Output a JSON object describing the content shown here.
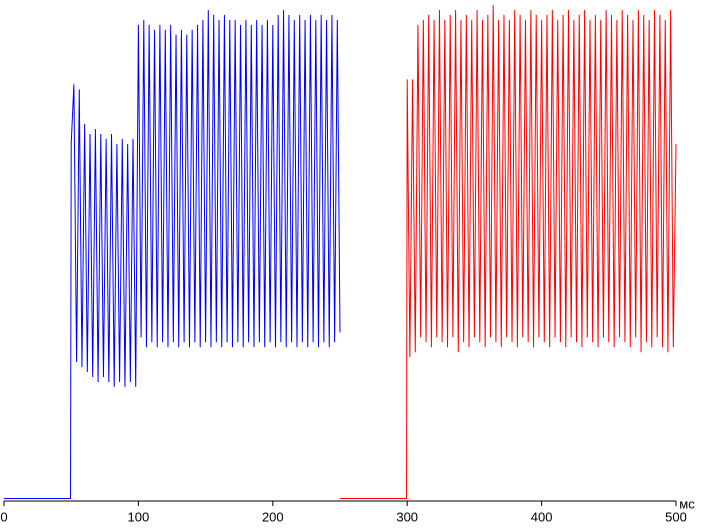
{
  "chart_data": {
    "type": "line",
    "x_label": "мс",
    "xlim": [
      0,
      500
    ],
    "xticks": [
      0,
      100,
      200,
      300,
      400,
      500
    ],
    "ylim": [
      0,
      100
    ],
    "series": [
      {
        "color": "#0000ff",
        "x": [
          0,
          49.5,
          50,
          52,
          54,
          56,
          58,
          60,
          62,
          64,
          66,
          68,
          70,
          72,
          74,
          76,
          78,
          80,
          82,
          84,
          86,
          88,
          90,
          92,
          94,
          96,
          98,
          100,
          102,
          104,
          106,
          108,
          110,
          112,
          114,
          116,
          118,
          120,
          122,
          124,
          126,
          128,
          130,
          132,
          134,
          136,
          138,
          140,
          142,
          144,
          146,
          148,
          150,
          152,
          154,
          156,
          158,
          160,
          162,
          164,
          166,
          168,
          170,
          172,
          174,
          176,
          178,
          180,
          182,
          184,
          186,
          188,
          190,
          192,
          194,
          196,
          198,
          200,
          202,
          204,
          206,
          208,
          210,
          212,
          214,
          216,
          218,
          220,
          222,
          224,
          226,
          228,
          230,
          232,
          234,
          236,
          238,
          240,
          242,
          244,
          246,
          248,
          250
        ],
        "values": [
          0.5,
          0.5,
          72,
          84,
          28,
          83,
          27,
          76,
          26,
          74,
          25,
          75,
          24,
          74,
          25,
          73,
          24,
          74,
          23,
          72,
          24,
          73,
          23,
          72,
          24,
          73,
          23,
          96,
          33,
          97,
          31,
          96,
          32,
          95,
          31,
          96,
          32,
          95,
          31,
          96,
          32,
          94,
          31,
          95,
          32,
          94,
          31,
          95,
          32,
          96,
          31,
          97,
          32,
          99,
          31,
          98,
          32,
          97,
          31,
          98,
          32,
          97,
          31,
          97,
          32,
          96,
          31,
          97,
          32,
          96,
          31,
          97,
          32,
          96,
          31,
          97,
          32,
          96,
          31,
          98,
          32,
          99,
          31,
          98,
          32,
          97,
          31,
          98,
          32,
          97,
          31,
          98,
          32,
          97,
          31,
          98,
          32,
          97,
          31,
          98,
          32,
          97,
          34
        ]
      },
      {
        "color": "#ff0000",
        "x": [
          250,
          299.5,
          300,
          302,
          304,
          306,
          308,
          310,
          312,
          314,
          316,
          318,
          320,
          322,
          324,
          326,
          328,
          330,
          332,
          334,
          336,
          338,
          340,
          342,
          344,
          346,
          348,
          350,
          352,
          354,
          356,
          358,
          360,
          362,
          364,
          366,
          368,
          370,
          372,
          374,
          376,
          378,
          380,
          382,
          384,
          386,
          388,
          390,
          392,
          394,
          396,
          398,
          400,
          402,
          404,
          406,
          408,
          410,
          412,
          414,
          416,
          418,
          420,
          422,
          424,
          426,
          428,
          430,
          432,
          434,
          436,
          438,
          440,
          442,
          444,
          446,
          448,
          450,
          452,
          454,
          456,
          458,
          460,
          462,
          464,
          466,
          468,
          470,
          472,
          474,
          476,
          478,
          480,
          482,
          484,
          486,
          488,
          490,
          492,
          494,
          496,
          498,
          500
        ],
        "values": [
          0.5,
          0.5,
          85,
          29,
          85,
          30,
          96,
          33,
          97,
          32,
          98,
          31,
          97,
          33,
          99,
          32,
          97,
          31,
          98,
          33,
          99,
          30,
          97,
          32,
          98,
          31,
          97,
          33,
          99,
          32,
          97,
          31,
          98,
          33,
          100,
          32,
          97,
          31,
          98,
          33,
          97,
          32,
          99,
          31,
          98,
          33,
          97,
          32,
          99,
          31,
          98,
          33,
          97,
          32,
          98,
          31,
          99,
          33,
          97,
          32,
          98,
          31,
          99,
          33,
          97,
          32,
          98,
          31,
          99,
          33,
          97,
          32,
          98,
          31,
          97,
          33,
          99,
          32,
          98,
          31,
          97,
          33,
          99,
          32,
          98,
          31,
          97,
          33,
          99,
          30,
          98,
          32,
          97,
          31,
          99,
          33,
          98,
          31,
          97,
          30,
          99,
          31,
          72
        ]
      }
    ]
  }
}
